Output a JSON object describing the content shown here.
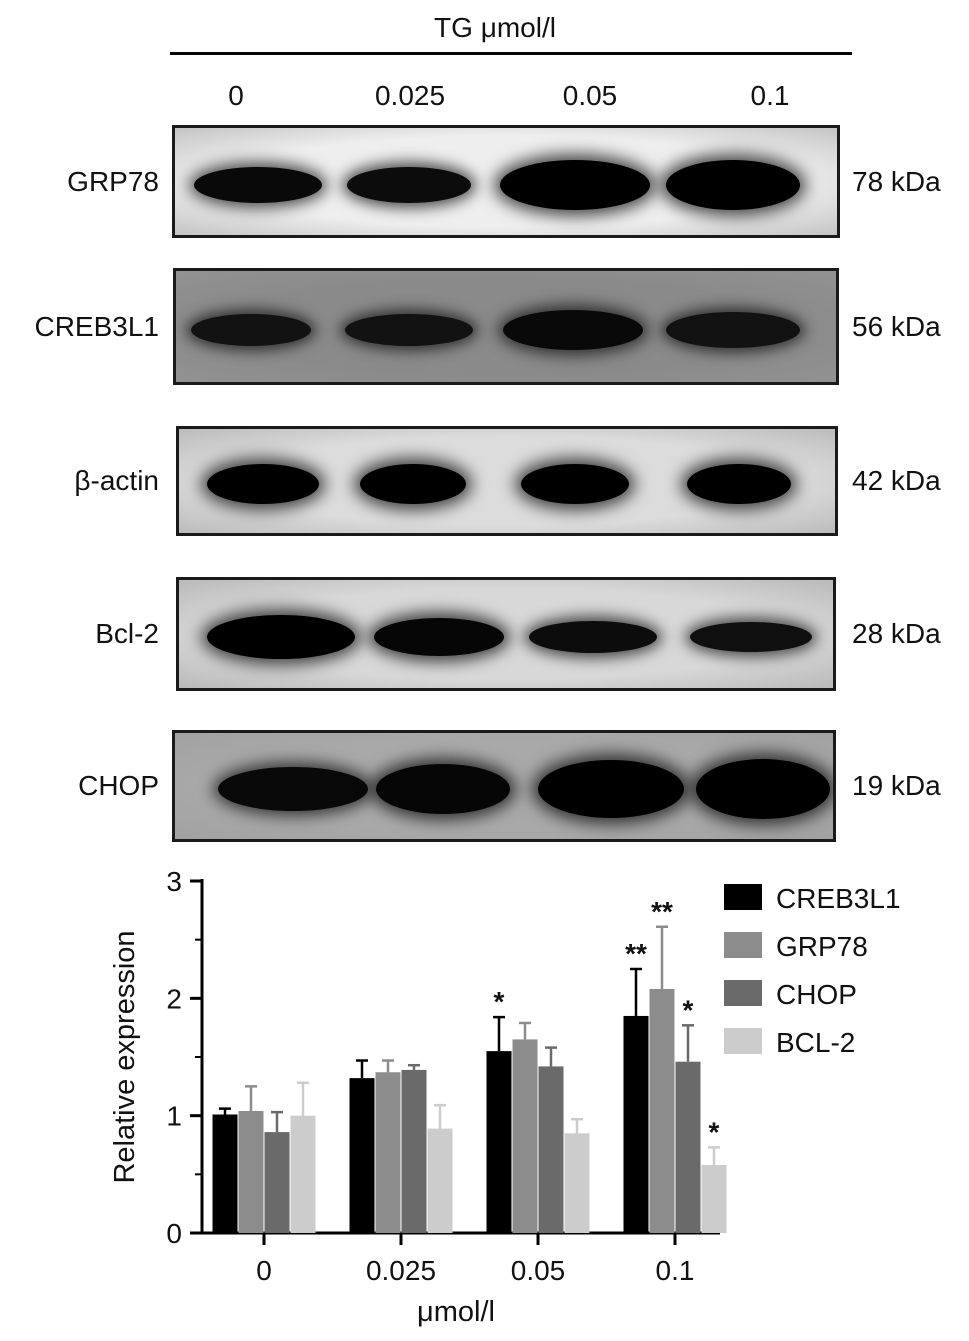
{
  "blot": {
    "title": "TG μmol/l",
    "lanes": [
      "0",
      "0.025",
      "0.05",
      "0.1"
    ],
    "rows": [
      {
        "label": "GRP78",
        "mw": "78 kDa",
        "band_darkness": [
          0.85,
          0.8,
          1.0,
          1.0
        ],
        "bg": "#eeeeee"
      },
      {
        "label": "CREB3L1",
        "mw": "56 kDa",
        "band_darkness": [
          0.7,
          0.7,
          0.85,
          0.7
        ],
        "bg": "#8a8a8a"
      },
      {
        "label": "β-actin",
        "mw": "42 kDa",
        "band_darkness": [
          1.0,
          1.0,
          1.0,
          1.0
        ],
        "bg": "#dcdcdc"
      },
      {
        "label": "Bcl-2",
        "mw": "28 kDa",
        "band_darkness": [
          1.0,
          0.9,
          0.8,
          0.75
        ],
        "bg": "#d8d8d8"
      },
      {
        "label": "CHOP",
        "mw": "19 kDa",
        "band_darkness": [
          0.85,
          0.9,
          1.0,
          1.0
        ],
        "bg": "#a9a9a9"
      }
    ]
  },
  "chart_data": {
    "type": "bar",
    "categories": [
      "0",
      "0.025",
      "0.05",
      "0.1"
    ],
    "xlabel": "μmol/l",
    "ylabel": "Relative expression",
    "ylim": [
      0,
      3
    ],
    "yticks": [
      0,
      1,
      2,
      3
    ],
    "legend_position": "top-right",
    "series": [
      {
        "name": "CREB3L1",
        "color": "#000000",
        "values": [
          1.01,
          1.32,
          1.55,
          1.85
        ],
        "errors": [
          0.05,
          0.15,
          0.29,
          0.4
        ],
        "annotations": [
          "",
          "",
          "*",
          "**"
        ]
      },
      {
        "name": "GRP78",
        "color": "#8c8c8c",
        "values": [
          1.04,
          1.37,
          1.65,
          2.08
        ],
        "errors": [
          0.21,
          0.1,
          0.14,
          0.53
        ],
        "annotations": [
          "",
          "",
          "",
          "**"
        ]
      },
      {
        "name": "CHOP",
        "color": "#6a6a6a",
        "values": [
          0.86,
          1.39,
          1.42,
          1.46
        ],
        "errors": [
          0.17,
          0.04,
          0.16,
          0.31
        ],
        "annotations": [
          "",
          "",
          "",
          "*"
        ]
      },
      {
        "name": "BCL-2",
        "color": "#cccccc",
        "values": [
          1.0,
          0.89,
          0.85,
          0.58
        ],
        "errors": [
          0.28,
          0.2,
          0.12,
          0.15
        ],
        "annotations": [
          "",
          "",
          "",
          "*"
        ]
      }
    ]
  }
}
